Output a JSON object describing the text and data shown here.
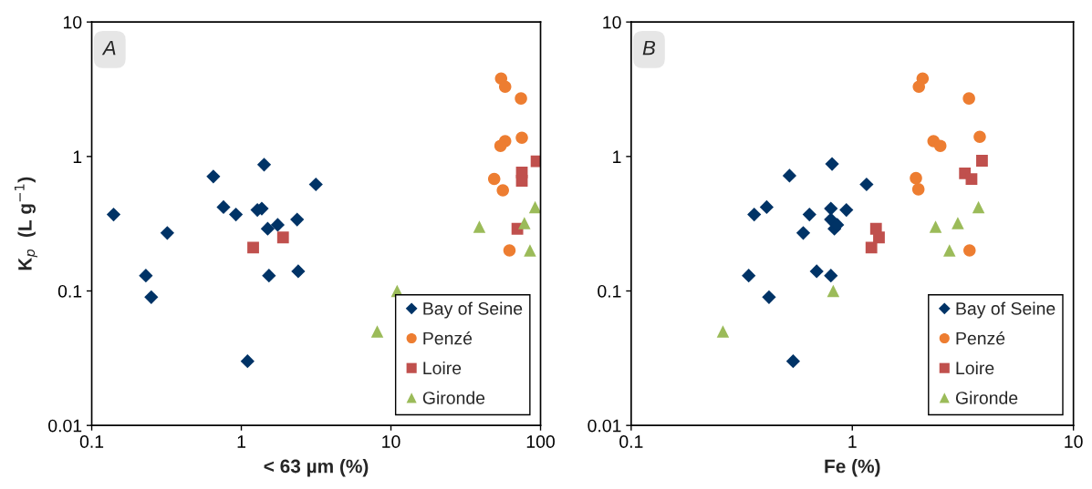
{
  "chart_data": [
    {
      "type": "scatter",
      "xlabel": "< 63 µm (%)",
      "ylabel": "K$_{p}$  (L g$^{−1}$)",
      "log": "xy",
      "xlim": [
        0.1,
        100
      ],
      "ylim": [
        0.01,
        10
      ],
      "xticks": [
        0.1,
        1,
        10,
        100
      ],
      "yticks": [
        0.01,
        0.1,
        1,
        10
      ],
      "legend": "bottom right",
      "grid": false,
      "annotations": [
        "A"
      ],
      "series": [
        {
          "name": "Bay of Seine",
          "color": "#003366",
          "marker": "diamond",
          "x": [
            0.14,
            0.23,
            0.25,
            0.32,
            0.65,
            0.76,
            0.92,
            1.1,
            1.28,
            1.37,
            1.42,
            1.5,
            1.53,
            1.75,
            2.36,
            2.4,
            3.15
          ],
          "values": [
            0.37,
            0.13,
            0.09,
            0.27,
            0.71,
            0.42,
            0.37,
            0.03,
            0.4,
            0.41,
            0.87,
            0.29,
            0.13,
            0.31,
            0.34,
            0.14,
            0.62
          ]
        },
        {
          "name": "Penzé",
          "color": "#ed7d31",
          "marker": "circle",
          "x": [
            54.5,
            58,
            74,
            58,
            54,
            75,
            49,
            56,
            62
          ],
          "values": [
            3.8,
            3.3,
            2.7,
            1.3,
            1.2,
            1.38,
            0.68,
            0.56,
            0.2
          ]
        },
        {
          "name": "Loire",
          "color": "#c0504d",
          "marker": "square",
          "x": [
            1.2,
            1.9,
            70,
            75,
            75,
            94
          ],
          "values": [
            0.21,
            0.25,
            0.29,
            0.76,
            0.66,
            0.92
          ]
        },
        {
          "name": "Gironde",
          "color": "#9bbb59",
          "marker": "triangle",
          "x": [
            11,
            8.1,
            39,
            78,
            92,
            85
          ],
          "values": [
            0.1,
            0.05,
            0.3,
            0.32,
            0.42,
            0.2
          ]
        }
      ]
    },
    {
      "type": "scatter",
      "xlabel": "Fe (%)",
      "log": "xy",
      "xlim": [
        0.1,
        10
      ],
      "ylim": [
        0.01,
        10
      ],
      "xticks": [
        0.1,
        1,
        10
      ],
      "yticks": [
        0.01,
        0.1,
        1,
        10
      ],
      "legend": "bottom right",
      "grid": false,
      "annotations": [
        "B"
      ],
      "series": [
        {
          "name": "Bay of Seine",
          "color": "#003366",
          "marker": "diamond",
          "x": [
            0.34,
            0.36,
            0.41,
            0.42,
            0.52,
            0.54,
            0.6,
            0.64,
            0.69,
            0.8,
            0.8,
            0.8,
            0.81,
            0.83,
            0.855,
            0.94,
            1.16
          ],
          "values": [
            0.13,
            0.37,
            0.42,
            0.09,
            0.72,
            0.03,
            0.27,
            0.37,
            0.14,
            0.13,
            0.41,
            0.34,
            0.88,
            0.29,
            0.31,
            0.4,
            0.62
          ]
        },
        {
          "name": "Penzé",
          "color": "#ed7d31",
          "marker": "circle",
          "x": [
            2.08,
            2.0,
            3.37,
            2.33,
            2.5,
            3.77,
            1.94,
            1.99,
            3.39
          ],
          "values": [
            3.8,
            3.3,
            2.7,
            1.3,
            1.2,
            1.4,
            0.69,
            0.57,
            0.2
          ]
        },
        {
          "name": "Loire",
          "color": "#c0504d",
          "marker": "square",
          "x": [
            1.28,
            1.32,
            1.22,
            3.23,
            3.46,
            3.86
          ],
          "values": [
            0.29,
            0.25,
            0.21,
            0.75,
            0.68,
            0.93
          ]
        },
        {
          "name": "Gironde",
          "color": "#9bbb59",
          "marker": "triangle",
          "x": [
            0.26,
            0.82,
            2.38,
            3.0,
            3.72,
            2.75
          ],
          "values": [
            0.05,
            0.1,
            0.3,
            0.32,
            0.42,
            0.2
          ]
        }
      ]
    }
  ]
}
